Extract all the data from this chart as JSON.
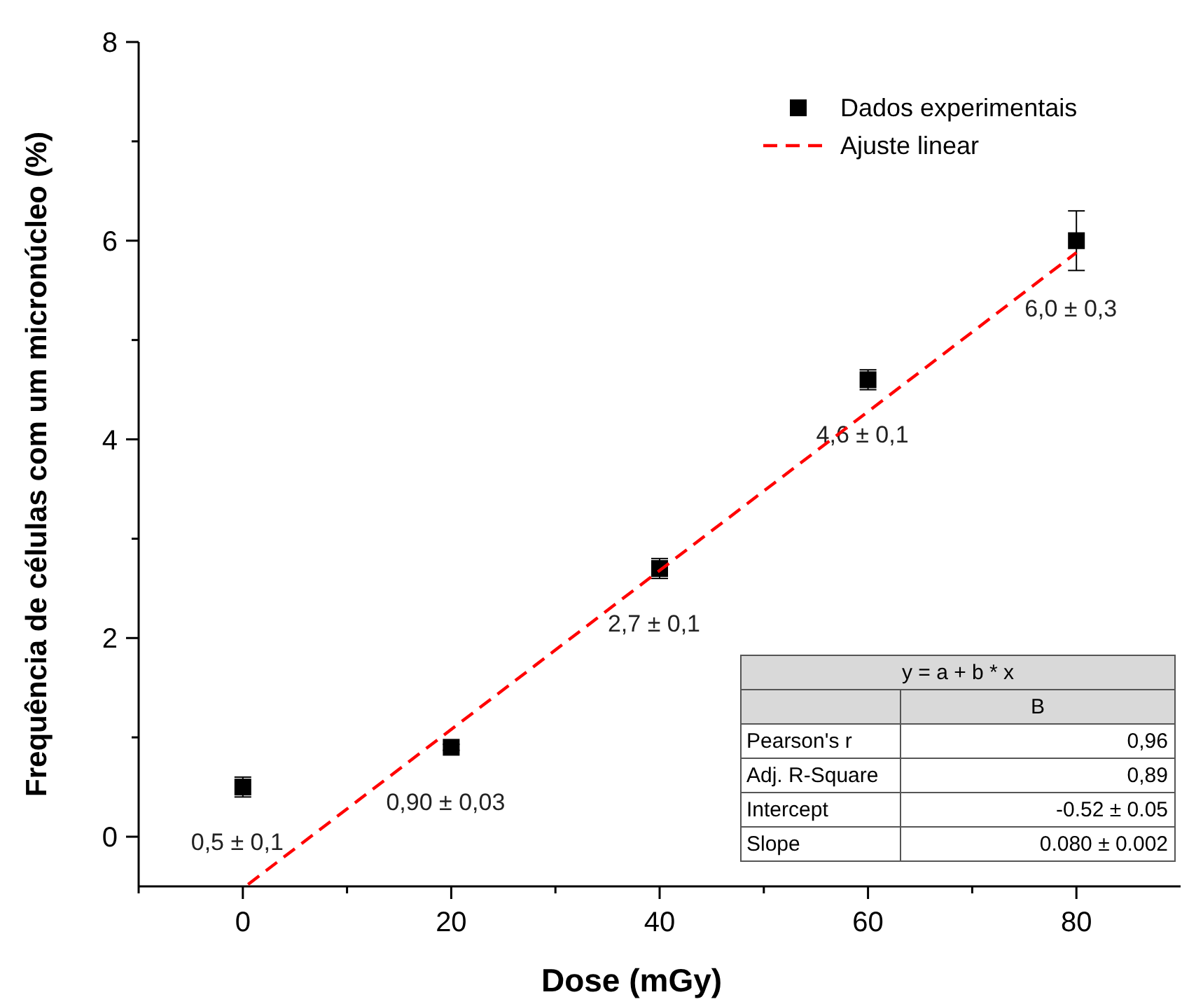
{
  "chart_data": {
    "type": "scatter",
    "xlabel": "Dose (mGy)",
    "ylabel": "Frequência de células com um micronúcleo (%)",
    "xlim": [
      -10,
      90
    ],
    "ylim": [
      -0.5,
      8
    ],
    "xticks": [
      {
        "value": -10,
        "label": null
      },
      0,
      {
        "value": 10,
        "label": null
      },
      20,
      {
        "value": 30,
        "label": null
      },
      40,
      {
        "value": 50,
        "label": null
      },
      60,
      {
        "value": 70,
        "label": null
      },
      80
    ],
    "yticks": [
      0,
      {
        "value": 1,
        "label": null
      },
      2,
      {
        "value": 3,
        "label": null
      },
      4,
      {
        "value": 5,
        "label": null
      },
      6,
      {
        "value": 7,
        "label": null
      },
      8
    ],
    "grid": false,
    "legend": "top right",
    "marker": "square",
    "series": [
      {
        "name": "Dados experimentais",
        "color": "#000000",
        "x": [
          0,
          20,
          40,
          60,
          80
        ],
        "values": [
          0.5,
          0.9,
          2.7,
          4.6,
          6.0
        ],
        "errors": [
          0.1,
          0.03,
          0.1,
          0.1,
          0.3
        ],
        "value_labels": [
          "0,5 ± 0,1",
          "0,90 ± 0,03",
          "2,7 ± 0,1",
          "4,6 ± 0,1",
          "6,0 ± 0,3"
        ]
      },
      {
        "name": "Ajuste linear",
        "type": "line",
        "line_style": "dashed",
        "marker": "none",
        "color": "#ff0000",
        "x": [
          0.5,
          80
        ],
        "values": [
          -0.48,
          5.88
        ]
      }
    ],
    "annotations": [
      "y = a + b * x",
      "B",
      "Pearson's r",
      "0,96",
      "Adj. R-Square",
      "0,89",
      "Intercept",
      "-0.52 ± 0.05",
      "Slope",
      "0.080 ± 0.002"
    ]
  }
}
